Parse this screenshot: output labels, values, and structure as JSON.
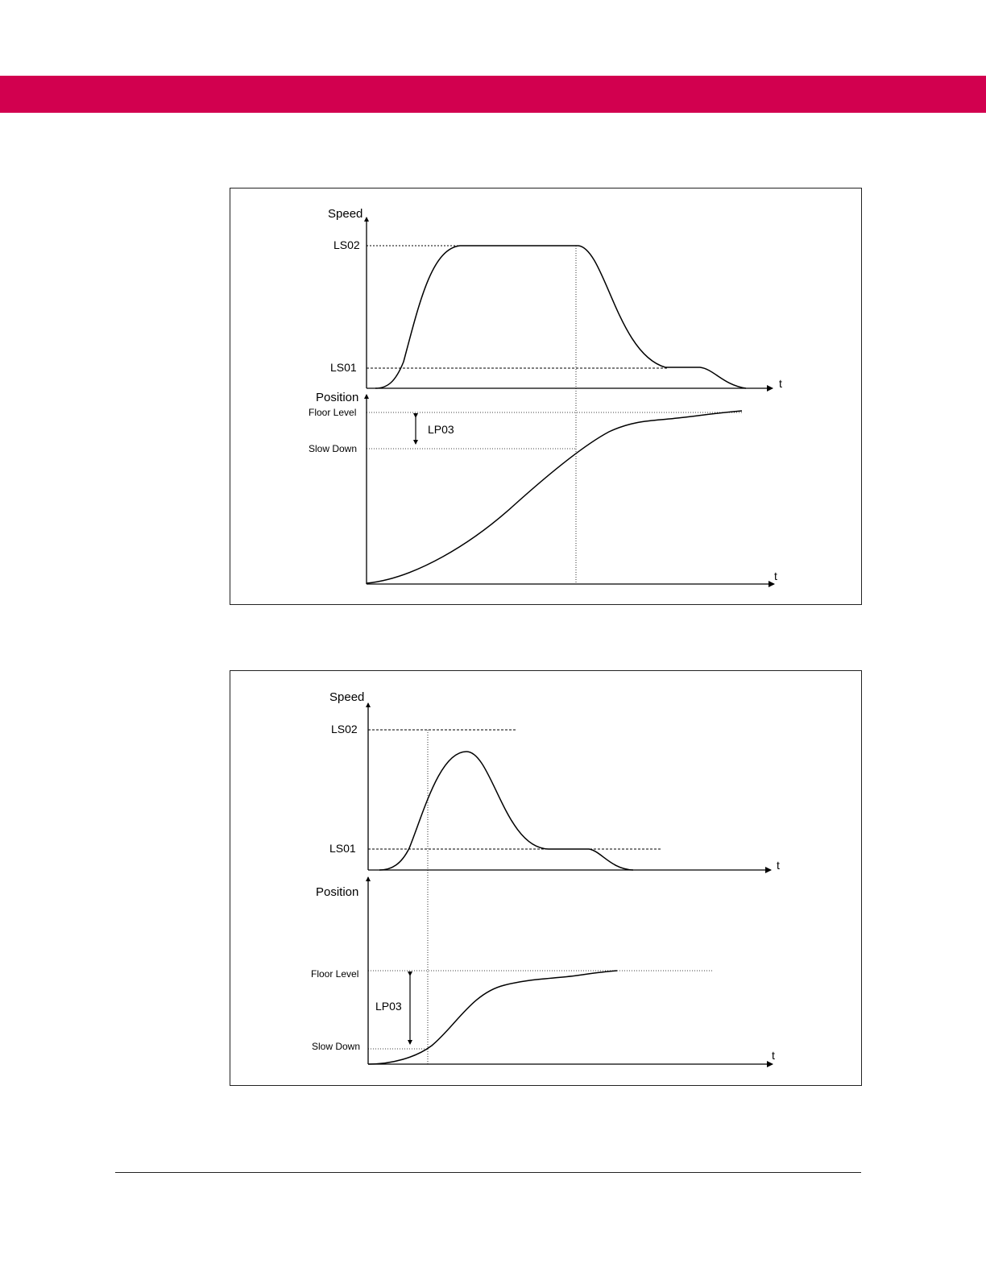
{
  "header": {
    "color": "#d2004f"
  },
  "figure_top": {
    "speed_axis_label": "Speed",
    "ls02_label": "LS02",
    "ls01_label": "LS01",
    "speed_t_label": "t",
    "position_axis_label": "Position",
    "floor_level_label": "Floor Level",
    "slow_down_label": "Slow Down",
    "lp03_label": "LP03",
    "position_t_label": "t"
  },
  "figure_bottom": {
    "speed_axis_label": "Speed",
    "ls02_label": "LS02",
    "ls01_label": "LS01",
    "speed_t_label": "t",
    "position_axis_label": "Position",
    "floor_level_label": "Floor Level",
    "slow_down_label": "Slow Down",
    "lp03_label": "LP03",
    "position_t_label": "t"
  }
}
